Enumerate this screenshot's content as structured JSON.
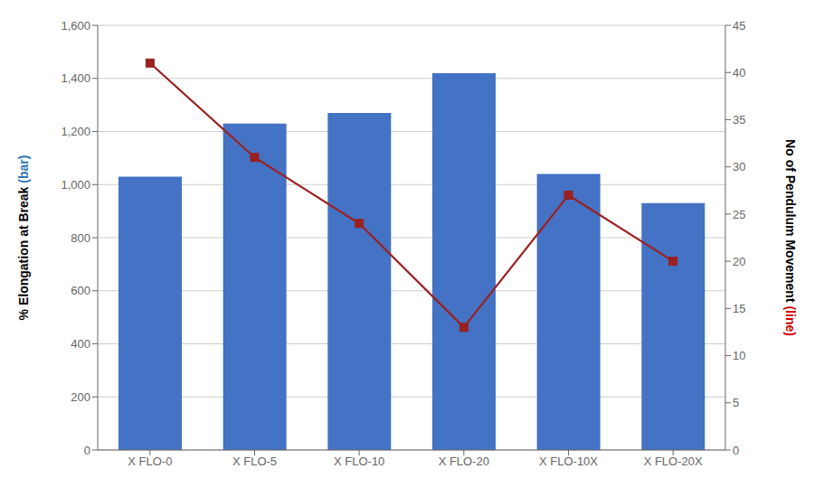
{
  "chart_data": {
    "type": "bar",
    "categories": [
      "X FLO-0",
      "X FLO-5",
      "X FLO-10",
      "X FLO-20",
      "X FLO-10X",
      "X FLO-20X"
    ],
    "series": [
      {
        "type": "bar",
        "color": "#4472C4",
        "values": [
          1030,
          1230,
          1270,
          1420,
          1040,
          930
        ]
      },
      {
        "type": "line",
        "axis": "y2",
        "color": "#9B2020",
        "marker": "square",
        "values": [
          41,
          31,
          24,
          13,
          27,
          20
        ]
      }
    ],
    "y_label": [
      {
        "text": "% Elongation at Break",
        "color": "#000000"
      },
      {
        "text": "(bar)",
        "color": "#2E74B5"
      }
    ],
    "y2_label": [
      {
        "text": "No of Pendulum Movement",
        "color": "#000000"
      },
      {
        "text": "(line)",
        "color": "#CC0000"
      }
    ],
    "ylim": [
      0,
      1600
    ],
    "yticks": [
      0,
      200,
      400,
      600,
      800,
      {
        "value": 1000,
        "label": "1,000"
      },
      {
        "value": 1200,
        "label": "1,200"
      },
      {
        "value": 1400,
        "label": "1,400"
      },
      {
        "value": 1600,
        "label": "1,600"
      }
    ],
    "y2lim": [
      0,
      45
    ],
    "y2ticks": [
      0,
      5,
      10,
      15,
      20,
      25,
      30,
      35,
      40,
      45
    ],
    "grid": true
  }
}
